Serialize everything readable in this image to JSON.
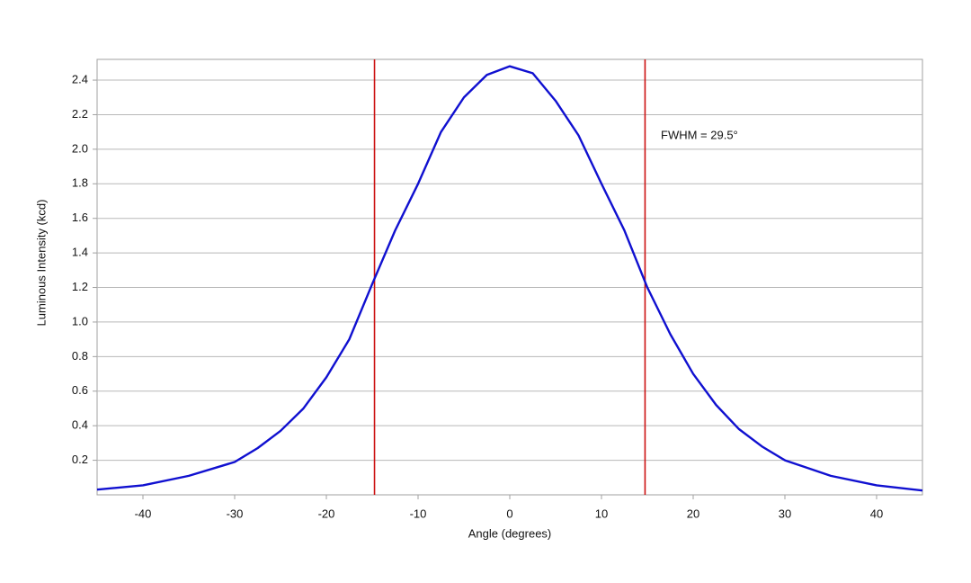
{
  "chart_data": {
    "type": "line",
    "x_label": "Angle (degrees)",
    "y_label": "Luminous Intensity (kcd)",
    "annotation": "FWHM = 29.5°",
    "x": [
      -45,
      -40,
      -35,
      -30,
      -27.5,
      -25,
      -22.5,
      -20,
      -17.5,
      -15,
      -12.5,
      -10,
      -7.5,
      -5,
      -2.5,
      0,
      2.5,
      5,
      7.5,
      10,
      12.5,
      15,
      17.5,
      20,
      22.5,
      25,
      27.5,
      30,
      35,
      40,
      45
    ],
    "series": [
      {
        "color": "#1010d0",
        "values": [
          0.03,
          0.055,
          0.11,
          0.19,
          0.27,
          0.37,
          0.5,
          0.68,
          0.9,
          1.22,
          1.53,
          1.8,
          2.1,
          2.3,
          2.43,
          2.48,
          2.44,
          2.28,
          2.08,
          1.8,
          1.53,
          1.2,
          0.93,
          0.7,
          0.52,
          0.38,
          0.28,
          0.2,
          0.11,
          0.055,
          0.025
        ]
      }
    ],
    "vlines": [
      -14.75,
      14.75
    ],
    "vline_color": "#cc1111",
    "xlim": [
      -45,
      45
    ],
    "xticks": [
      -40,
      -30,
      -20,
      -10,
      0,
      10,
      20,
      30,
      40
    ],
    "ylim": [
      0,
      2.52
    ],
    "yticks": [
      0.2,
      0.4,
      0.6,
      0.8,
      {
        "value": 1,
        "label": "1.0"
      },
      1.2,
      1.4,
      1.6,
      1.8,
      {
        "value": 2,
        "label": "2.0"
      },
      2.2,
      2.4
    ],
    "grid": true
  }
}
